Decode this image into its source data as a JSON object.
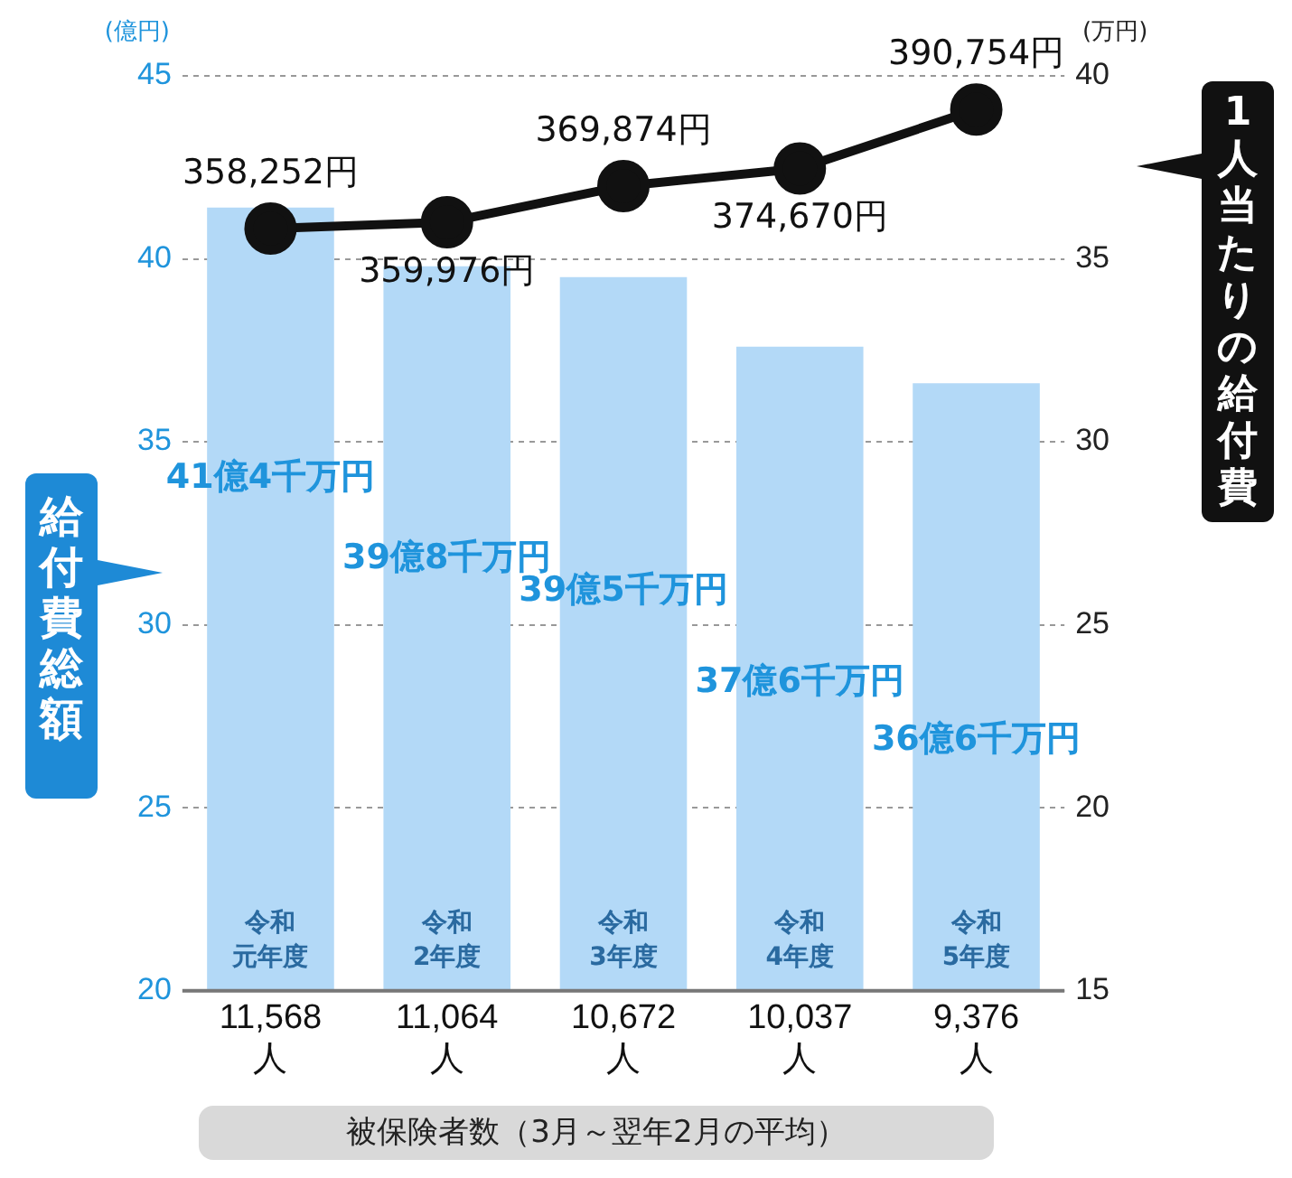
{
  "chart_data": {
    "type": "bar",
    "ylabel": "給付費総額",
    "y2label": "1人当たりの給付費",
    "xlabel": "被保険者数（3月～翌年2月の平均）",
    "categories": [
      "11,568 人",
      "11,064 人",
      "10,672 人",
      "10,037 人",
      "9,376 人"
    ],
    "series": [
      {
        "color": "#b3d9f7",
        "values": [
          41.4,
          39.8,
          39.5,
          37.6,
          36.6
        ]
      },
      {
        "type": "line",
        "axis": "y2",
        "color": "#111111",
        "values": [
          35.83,
          36.0,
          36.99,
          37.47,
          39.08
        ]
      }
    ],
    "ylim": [
      20,
      45
    ],
    "yticks": [
      20,
      25,
      30,
      35,
      40,
      45
    ],
    "y2lim": [
      15,
      40
    ],
    "y2ticks": [
      15,
      20,
      25,
      30,
      35,
      40
    ],
    "grid": "y",
    "marker": "circle",
    "line_style": "solid",
    "legend": false,
    "annotations": [
      "(億円)",
      "(万円)",
      "令和元年度",
      "令和2年度",
      "令和3年度",
      "令和4年度",
      "令和5年度",
      "41億4千万円",
      "39億8千万円",
      "39億5千万円",
      "37億6千万円",
      "36億6千万円",
      "358,252円",
      "359,976円",
      "369,874円",
      "374,670円",
      "390,754円"
    ]
  }
}
